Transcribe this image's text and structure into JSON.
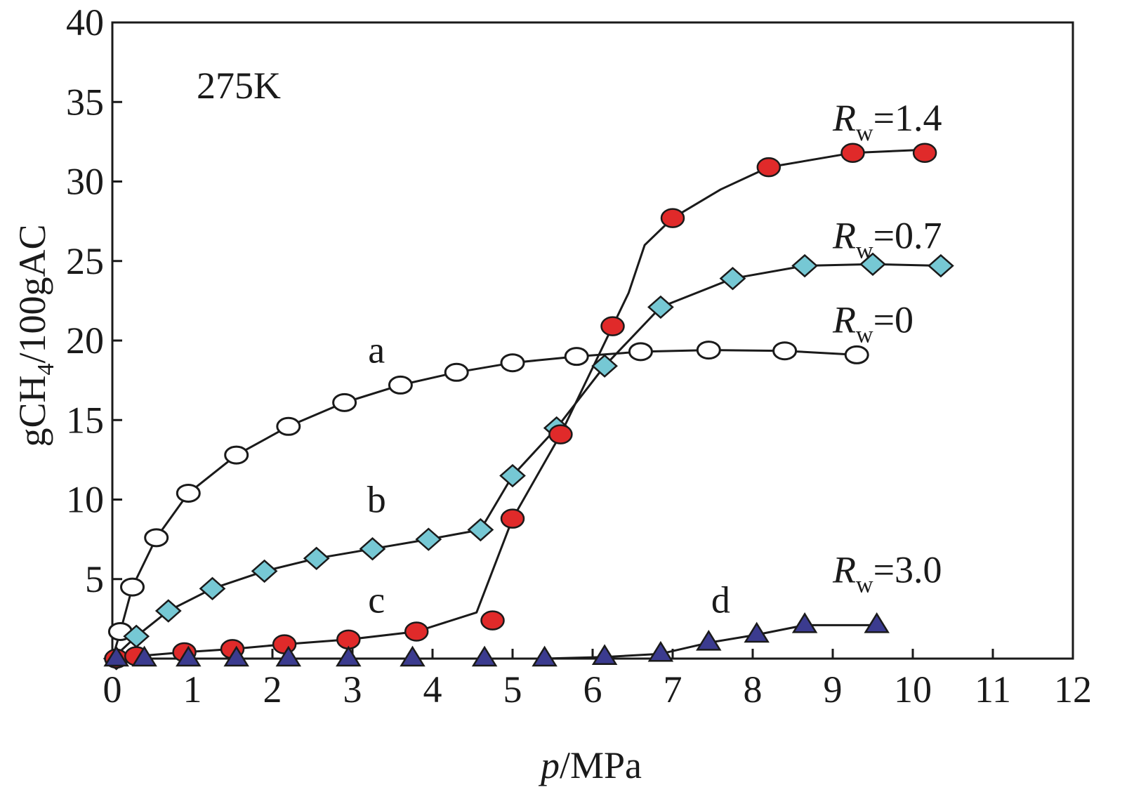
{
  "chart_data": {
    "type": "line",
    "title": "",
    "annotation_temp": "275K",
    "xlabel_italic": "p",
    "xlabel_rest": "/MPa",
    "ylabel": "gCH4/100gAC",
    "ylabel_parts": {
      "pre": "gCH",
      "sub": "4",
      "post": "/100gAC"
    },
    "xlim": [
      0,
      12
    ],
    "ylim": [
      0,
      40
    ],
    "xticks": [
      0,
      1,
      2,
      3,
      4,
      5,
      6,
      7,
      8,
      9,
      10,
      11,
      12
    ],
    "yticks": [
      5,
      10,
      15,
      20,
      25,
      30,
      35,
      40
    ],
    "grid": false,
    "colors": {
      "axis": "#1a1a1a",
      "line": "#1a1a1a",
      "open_circle_fill": "#ffffff",
      "diamond_fill": "#76c8d4",
      "circle_fill": "#e02a2a",
      "triangle_fill": "#3b3b8f"
    },
    "series": [
      {
        "id": "a",
        "letter": "a",
        "label_var": "R",
        "label_sub": "w",
        "label_value": "=0",
        "marker": "open-circle",
        "points": [
          [
            0.05,
            0.0
          ],
          [
            0.1,
            1.7
          ],
          [
            0.25,
            4.5
          ],
          [
            0.55,
            7.6
          ],
          [
            0.95,
            10.4
          ],
          [
            1.55,
            12.8
          ],
          [
            2.2,
            14.6
          ],
          [
            2.9,
            16.1
          ],
          [
            3.6,
            17.2
          ],
          [
            4.3,
            18.0
          ],
          [
            5.0,
            18.6
          ],
          [
            5.8,
            19.0
          ],
          [
            6.6,
            19.3
          ],
          [
            7.45,
            19.4
          ],
          [
            8.4,
            19.35
          ],
          [
            9.3,
            19.1
          ]
        ],
        "line": [
          [
            0.0,
            0.0
          ],
          [
            0.1,
            1.7
          ],
          [
            0.25,
            4.5
          ],
          [
            0.55,
            7.6
          ],
          [
            0.95,
            10.4
          ],
          [
            1.55,
            12.8
          ],
          [
            2.2,
            14.6
          ],
          [
            2.9,
            16.1
          ],
          [
            3.6,
            17.2
          ],
          [
            4.3,
            18.0
          ],
          [
            5.0,
            18.6
          ],
          [
            5.8,
            19.0
          ],
          [
            6.6,
            19.3
          ],
          [
            7.45,
            19.4
          ],
          [
            8.4,
            19.35
          ],
          [
            9.3,
            19.1
          ]
        ]
      },
      {
        "id": "b",
        "letter": "b",
        "label_var": "R",
        "label_sub": "w",
        "label_value": "=0.7",
        "marker": "diamond",
        "points": [
          [
            0.05,
            0.0
          ],
          [
            0.3,
            1.4
          ],
          [
            0.7,
            3.0
          ],
          [
            1.25,
            4.4
          ],
          [
            1.9,
            5.5
          ],
          [
            2.55,
            6.3
          ],
          [
            3.25,
            6.9
          ],
          [
            3.95,
            7.5
          ],
          [
            4.6,
            8.1
          ],
          [
            5.0,
            11.5
          ],
          [
            5.55,
            14.5
          ],
          [
            6.15,
            18.4
          ],
          [
            6.85,
            22.1
          ],
          [
            7.75,
            23.9
          ],
          [
            8.65,
            24.7
          ],
          [
            9.5,
            24.8
          ],
          [
            10.35,
            24.7
          ]
        ],
        "line": [
          [
            0.0,
            0.0
          ],
          [
            0.3,
            1.4
          ],
          [
            0.7,
            3.0
          ],
          [
            1.25,
            4.4
          ],
          [
            1.9,
            5.5
          ],
          [
            2.55,
            6.3
          ],
          [
            3.25,
            6.9
          ],
          [
            3.95,
            7.5
          ],
          [
            4.6,
            8.1
          ],
          [
            5.0,
            11.5
          ],
          [
            5.55,
            14.5
          ],
          [
            6.15,
            18.4
          ],
          [
            6.85,
            22.1
          ],
          [
            7.75,
            23.9
          ],
          [
            8.65,
            24.7
          ],
          [
            9.5,
            24.8
          ],
          [
            10.35,
            24.7
          ]
        ]
      },
      {
        "id": "c",
        "letter": "c",
        "label_var": "R",
        "label_sub": "w",
        "label_value": "=1.4",
        "marker": "filled-circle",
        "points": [
          [
            0.05,
            0.0
          ],
          [
            0.3,
            0.15
          ],
          [
            0.9,
            0.4
          ],
          [
            1.5,
            0.6
          ],
          [
            2.15,
            0.9
          ],
          [
            2.95,
            1.2
          ],
          [
            3.8,
            1.7
          ],
          [
            4.75,
            2.4
          ],
          [
            5.0,
            8.8
          ],
          [
            5.6,
            14.1
          ],
          [
            6.25,
            20.9
          ],
          [
            7.0,
            27.7
          ],
          [
            8.2,
            30.9
          ],
          [
            9.25,
            31.8
          ],
          [
            10.15,
            31.8
          ]
        ],
        "line": [
          [
            0.0,
            0.0
          ],
          [
            0.3,
            0.15
          ],
          [
            0.9,
            0.4
          ],
          [
            1.5,
            0.6
          ],
          [
            2.15,
            0.9
          ],
          [
            2.95,
            1.2
          ],
          [
            3.8,
            1.7
          ],
          [
            4.55,
            2.9
          ],
          [
            5.0,
            8.8
          ],
          [
            5.6,
            14.1
          ],
          [
            6.25,
            20.9
          ],
          [
            6.45,
            23.0
          ],
          [
            6.65,
            26.0
          ],
          [
            7.0,
            27.7
          ],
          [
            7.6,
            29.5
          ],
          [
            8.2,
            30.9
          ],
          [
            9.25,
            31.8
          ],
          [
            10.15,
            32.0
          ]
        ]
      },
      {
        "id": "d",
        "letter": "d",
        "label_var": "R",
        "label_sub": "w",
        "label_value": "=3.0",
        "marker": "triangle",
        "points": [
          [
            0.05,
            0.0
          ],
          [
            0.4,
            0.0
          ],
          [
            0.95,
            0.0
          ],
          [
            1.55,
            0.0
          ],
          [
            2.2,
            0.0
          ],
          [
            2.95,
            0.0
          ],
          [
            3.75,
            0.0
          ],
          [
            4.65,
            0.0
          ],
          [
            5.4,
            0.0
          ],
          [
            6.15,
            0.1
          ],
          [
            6.85,
            0.3
          ],
          [
            7.45,
            1.0
          ],
          [
            8.05,
            1.5
          ],
          [
            8.65,
            2.1
          ],
          [
            9.55,
            2.1
          ]
        ],
        "line": [
          [
            0.0,
            0.0
          ],
          [
            0.4,
            0.0
          ],
          [
            0.95,
            0.0
          ],
          [
            1.55,
            0.0
          ],
          [
            2.2,
            0.0
          ],
          [
            2.95,
            0.0
          ],
          [
            3.75,
            0.0
          ],
          [
            4.65,
            0.0
          ],
          [
            5.4,
            0.0
          ],
          [
            6.15,
            0.1
          ],
          [
            6.85,
            0.3
          ],
          [
            7.45,
            1.0
          ],
          [
            8.05,
            1.5
          ],
          [
            8.65,
            2.1
          ],
          [
            9.55,
            2.1
          ]
        ]
      }
    ],
    "letter_positions": {
      "a": [
        3.3,
        18.6
      ],
      "b": [
        3.3,
        9.2
      ],
      "c": [
        3.3,
        2.9
      ],
      "d": [
        7.6,
        2.9
      ]
    },
    "rlabel_positions": {
      "a": [
        9.0,
        20.5
      ],
      "b": [
        9.0,
        25.8
      ],
      "c": [
        9.0,
        33.2
      ],
      "d": [
        9.0,
        4.8
      ]
    }
  }
}
